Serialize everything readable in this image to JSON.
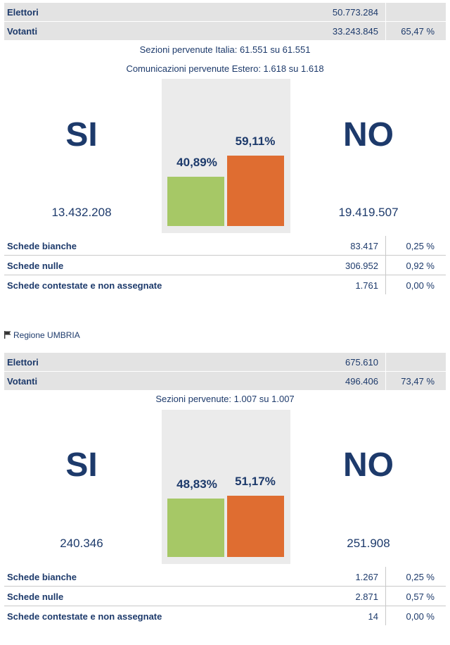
{
  "colors": {
    "si": "#a6c866",
    "no": "#df6d31",
    "text": "#1d3a6b",
    "panel": "#ebebeb",
    "summary_bg": "#e3e3e3"
  },
  "icons": {
    "region_flag": "flag-icon"
  },
  "national": {
    "electors_label": "Elettori",
    "electors_value": "50.773.284",
    "voters_label": "Votanti",
    "voters_value": "33.243.845",
    "turnout": "65,47 %",
    "sections_line": "Sezioni pervenute Italia: 61.551 su 61.551",
    "abroad_line": "Comunicazioni pervenute Estero: 1.618 su 1.618",
    "yes_label": "SI",
    "no_label": "NO",
    "yes_pct": "40,89%",
    "no_pct": "59,11%",
    "yes_share": 40.89,
    "no_share": 59.11,
    "yes_count": "13.432.208",
    "no_count": "19.419.507",
    "rows": [
      {
        "label": "Schede bianche",
        "value": "83.417",
        "pct": "0,25 %"
      },
      {
        "label": "Schede nulle",
        "value": "306.952",
        "pct": "0,92 %"
      },
      {
        "label": "Schede contestate e non assegnate",
        "value": "1.761",
        "pct": "0,00 %"
      }
    ]
  },
  "region": {
    "title": "Regione UMBRIA",
    "electors_label": "Elettori",
    "electors_value": "675.610",
    "voters_label": "Votanti",
    "voters_value": "496.406",
    "turnout": "73,47 %",
    "sections_line": "Sezioni pervenute: 1.007 su 1.007",
    "yes_label": "SI",
    "no_label": "NO",
    "yes_pct": "48,83%",
    "no_pct": "51,17%",
    "yes_share": 48.83,
    "no_share": 51.17,
    "yes_count": "240.346",
    "no_count": "251.908",
    "rows": [
      {
        "label": "Schede bianche",
        "value": "1.267",
        "pct": "0,25 %"
      },
      {
        "label": "Schede nulle",
        "value": "2.871",
        "pct": "0,57 %"
      },
      {
        "label": "Schede contestate e non assegnate",
        "value": "14",
        "pct": "0,00 %"
      }
    ]
  }
}
